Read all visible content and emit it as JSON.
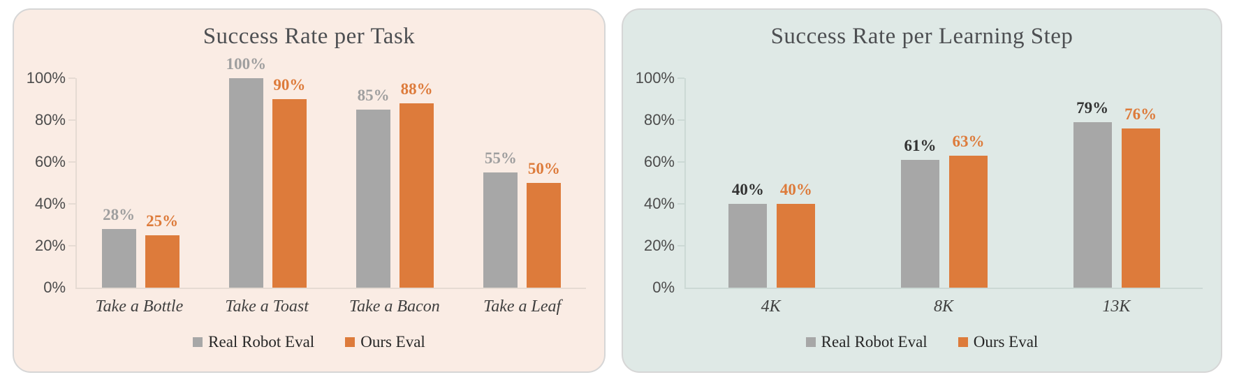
{
  "page": {
    "background": "#ffffff"
  },
  "chart_data": [
    {
      "type": "bar",
      "title": "Success Rate per Task",
      "categories": [
        "Take a Bottle",
        "Take a Toast",
        "Take a Bacon",
        "Take a Leaf"
      ],
      "series": [
        {
          "name": "Real Robot Eval",
          "values": [
            28,
            100,
            85,
            55
          ],
          "color": "#a7a7a7",
          "label_color": "#9f9f9f"
        },
        {
          "name": "Ours Eval",
          "values": [
            25,
            90,
            88,
            50
          ],
          "color": "#dd7b3b",
          "label_color": "#dd7b3b"
        }
      ],
      "value_labels": [
        [
          "28%",
          "100%",
          "85%",
          "55%"
        ],
        [
          "25%",
          "90%",
          "88%",
          "50%"
        ]
      ],
      "value_suffix": "%",
      "xlabel": "",
      "ylabel": "",
      "ylim": [
        0,
        100
      ],
      "yticks": [
        0,
        20,
        40,
        60,
        80,
        100
      ],
      "ytick_labels": [
        "0%",
        "20%",
        "40%",
        "60%",
        "80%",
        "100%"
      ],
      "grid": false,
      "legend_position": "bottom",
      "panel_background": "#faece4",
      "axis_color": "#e6dbd3"
    },
    {
      "type": "bar",
      "title": "Success Rate per Learning Step",
      "categories": [
        "4K",
        "8K",
        "13K"
      ],
      "series": [
        {
          "name": "Real Robot Eval",
          "values": [
            40,
            61,
            79
          ],
          "color": "#a7a7a7",
          "label_color": "#333333"
        },
        {
          "name": "Ours Eval",
          "values": [
            40,
            63,
            76
          ],
          "color": "#dd7b3b",
          "label_color": "#dd7b3b"
        }
      ],
      "value_labels": [
        [
          "40%",
          "61%",
          "79%"
        ],
        [
          "40%",
          "63%",
          "76%"
        ]
      ],
      "value_suffix": "%",
      "xlabel": "",
      "ylabel": "",
      "ylim": [
        0,
        100
      ],
      "yticks": [
        0,
        20,
        40,
        60,
        80,
        100
      ],
      "ytick_labels": [
        "0%",
        "20%",
        "40%",
        "60%",
        "80%",
        "100%"
      ],
      "grid": false,
      "legend_position": "bottom",
      "panel_background": "#dfe9e6",
      "axis_color": "#ccd9d5"
    }
  ]
}
